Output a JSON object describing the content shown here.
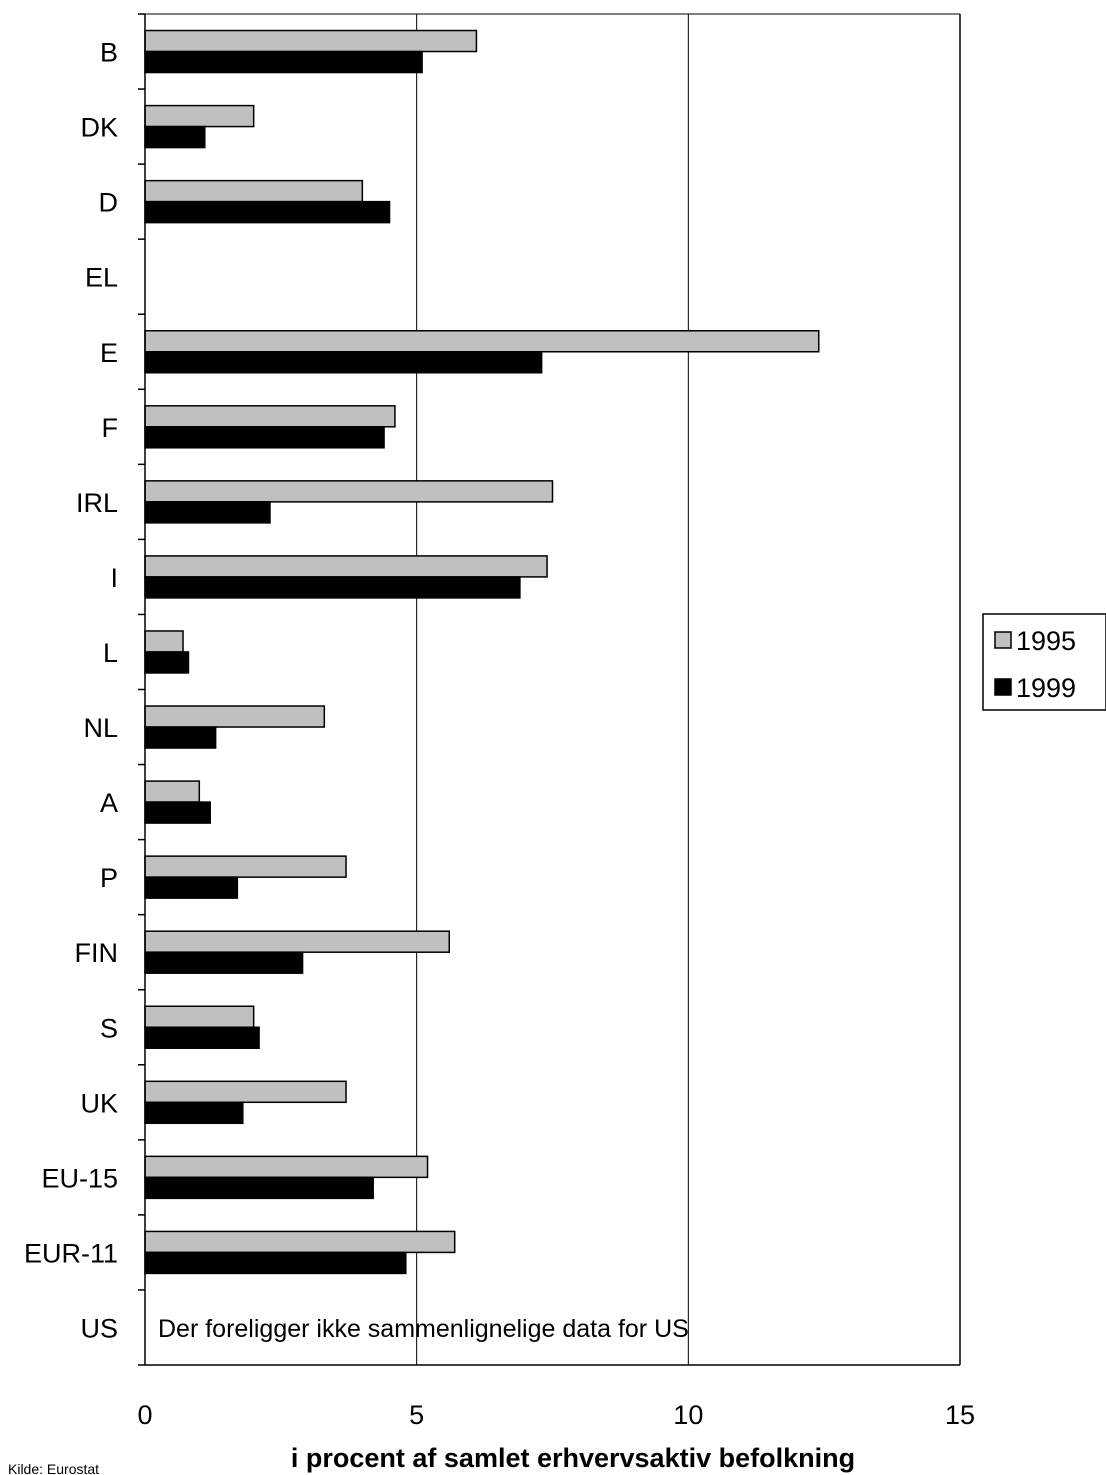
{
  "chart_data": {
    "type": "bar",
    "orientation": "horizontal",
    "categories": [
      "B",
      "DK",
      "D",
      "EL",
      "E",
      "F",
      "IRL",
      "I",
      "L",
      "NL",
      "A",
      "P",
      "FIN",
      "S",
      "UK",
      "EU-15",
      "EUR-11",
      "US"
    ],
    "series": [
      {
        "name": "1995",
        "color": "#c0c0c0",
        "values": [
          6.1,
          2.0,
          4.0,
          null,
          12.4,
          4.6,
          7.5,
          7.4,
          0.7,
          3.3,
          1.0,
          3.7,
          5.6,
          2.0,
          3.7,
          5.2,
          5.7,
          null
        ]
      },
      {
        "name": "1999",
        "color": "#000000",
        "values": [
          5.1,
          1.1,
          4.5,
          null,
          7.3,
          4.4,
          2.3,
          6.9,
          0.8,
          1.3,
          1.2,
          1.7,
          2.9,
          2.1,
          1.8,
          4.2,
          4.8,
          null
        ]
      }
    ],
    "xlim": [
      0,
      15
    ],
    "xticks": [
      "0",
      "5",
      "10",
      "15"
    ],
    "xlabel": "i procent af samlet erhvervsaktiv befolkning",
    "grid": "vertical major gridlines",
    "legend_position": "right",
    "annotation": "Der foreligger ikke sammenlignelige data for US",
    "source": "Kilde: Eurostat"
  }
}
